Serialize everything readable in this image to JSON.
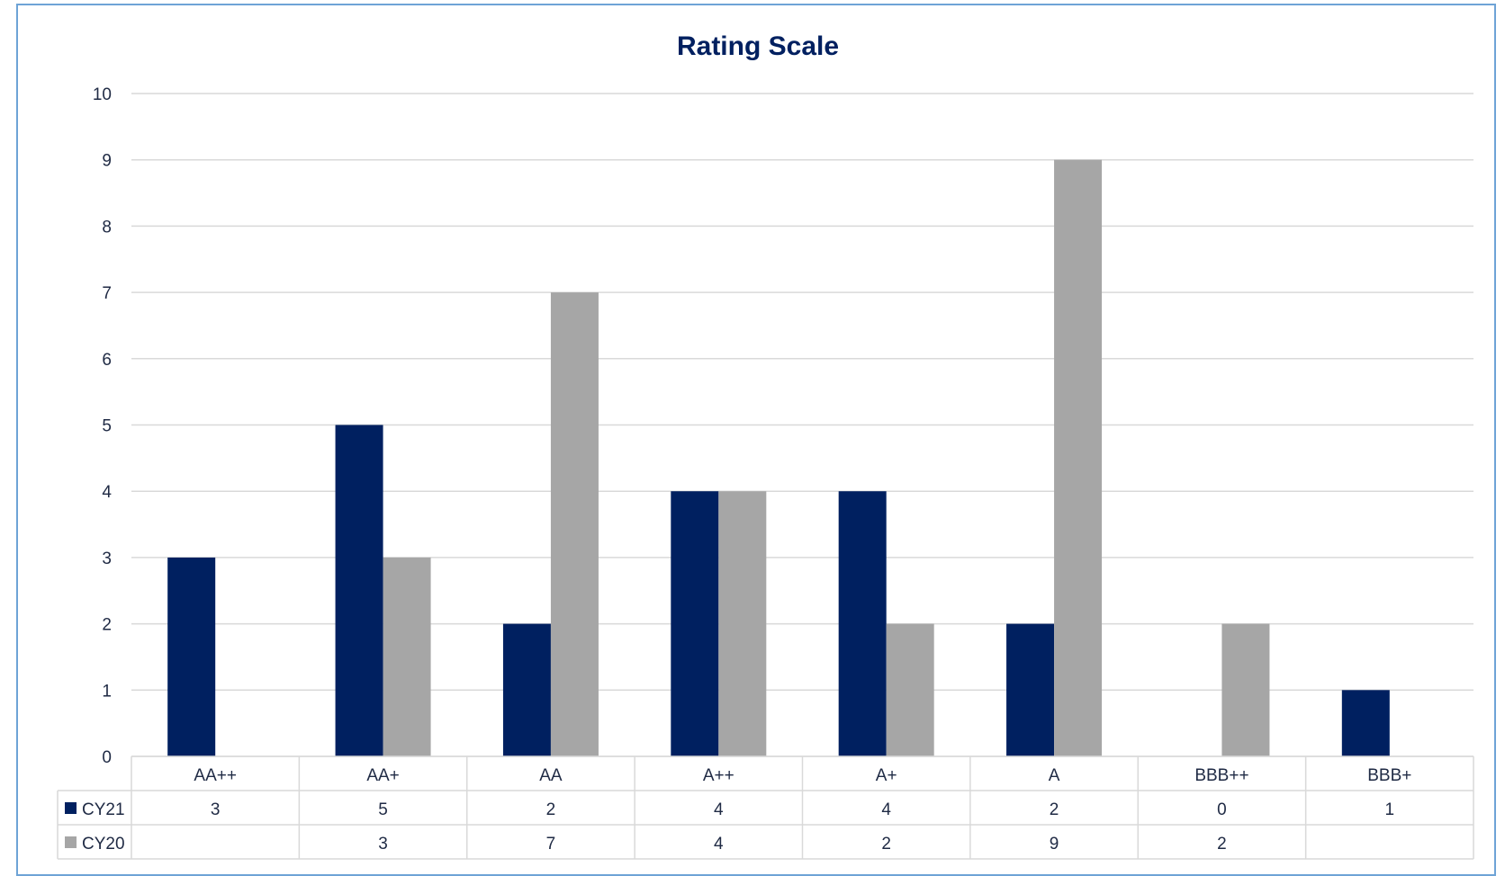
{
  "colors": {
    "CY21": "#002060",
    "CY20": "#a6a6a6",
    "title": "#002060",
    "grid": "#d9d9d9"
  },
  "chart_data": {
    "type": "bar",
    "title": "Rating Scale",
    "xlabel": "",
    "ylabel": "",
    "ylim": [
      0,
      10
    ],
    "y_ticks": [
      0,
      1,
      2,
      3,
      4,
      5,
      6,
      7,
      8,
      9,
      10
    ],
    "grid": true,
    "legend": "data-table-left",
    "categories": [
      "AA++",
      "AA+",
      "AA",
      "A++",
      "A+",
      "A",
      "BBB++",
      "BBB+"
    ],
    "series": [
      {
        "name": "CY21",
        "values": [
          3,
          5,
          2,
          4,
          4,
          2,
          0,
          1
        ],
        "table": [
          "3",
          "5",
          "2",
          "4",
          "4",
          "2",
          "0",
          "1"
        ]
      },
      {
        "name": "CY20",
        "values": [
          0,
          3,
          7,
          4,
          2,
          9,
          2,
          0
        ],
        "table": [
          "",
          "3",
          "7",
          "4",
          "2",
          "9",
          "2",
          ""
        ]
      }
    ]
  }
}
